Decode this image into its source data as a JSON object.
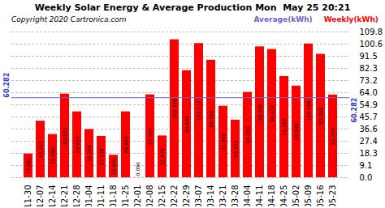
{
  "chart_data": {
    "type": "bar",
    "title": "Weekly Solar Energy & Average Production Mon  May 25 20:21",
    "annotations": [
      "Copyright 2020 Cartronica.com"
    ],
    "categories": [
      "11-30",
      "12-07",
      "12-14",
      "12-21",
      "12-28",
      "01-04",
      "01-11",
      "01-18",
      "01-25",
      "02-01",
      "02-08",
      "02-15",
      "02-22",
      "02-29",
      "03-07",
      "03-14",
      "03-21",
      "03-28",
      "04-04",
      "04-11",
      "04-18",
      "04-25",
      "05-02",
      "05-09",
      "05-16",
      "05-23"
    ],
    "series": [
      {
        "name": "Weekly(kWh)",
        "color": "#ff0000",
        "values": [
          17.892,
          42.612,
          32.58,
          63.032,
          49.624,
          36.308,
          31.138,
          16.936,
          49.646,
          0.096,
          62.46,
          31.476,
          103.928,
          80.64,
          101.112,
          88.566,
          53.84,
          43.372,
          64.316,
          98.63,
          96.632,
          76.26,
          69.048,
          100.788,
          93.008,
          62.32
        ],
        "value_labels": [
          "17.892",
          "42.612",
          "32.580",
          "63.032",
          "49.624",
          "36.308",
          "31.138",
          "16.936",
          "49.646",
          "0.096",
          "62.460",
          "31.476",
          "103.928",
          "80.640",
          "101.112",
          "88.566",
          "53.840",
          "43.372",
          "64.316",
          "98.630",
          "96.632",
          "76.260",
          "69.048",
          "100.788",
          "93.008",
          "62.320"
        ]
      }
    ],
    "average": {
      "name": "Average(kWh)",
      "value": 60.282,
      "color": "#6666cc",
      "label_color": "#3333cc"
    },
    "ylim": [
      0.0,
      109.8
    ],
    "yticks": [
      109.8,
      100.6,
      91.5,
      82.3,
      73.2,
      {
        "value": 64.0,
        "label": "64.0"
      },
      54.9,
      45.7,
      36.6,
      27.4,
      18.3,
      9.1,
      {
        "value": 0.0,
        "label": "0.0"
      }
    ],
    "grid": true,
    "data_labels": true,
    "legend": "top right"
  }
}
